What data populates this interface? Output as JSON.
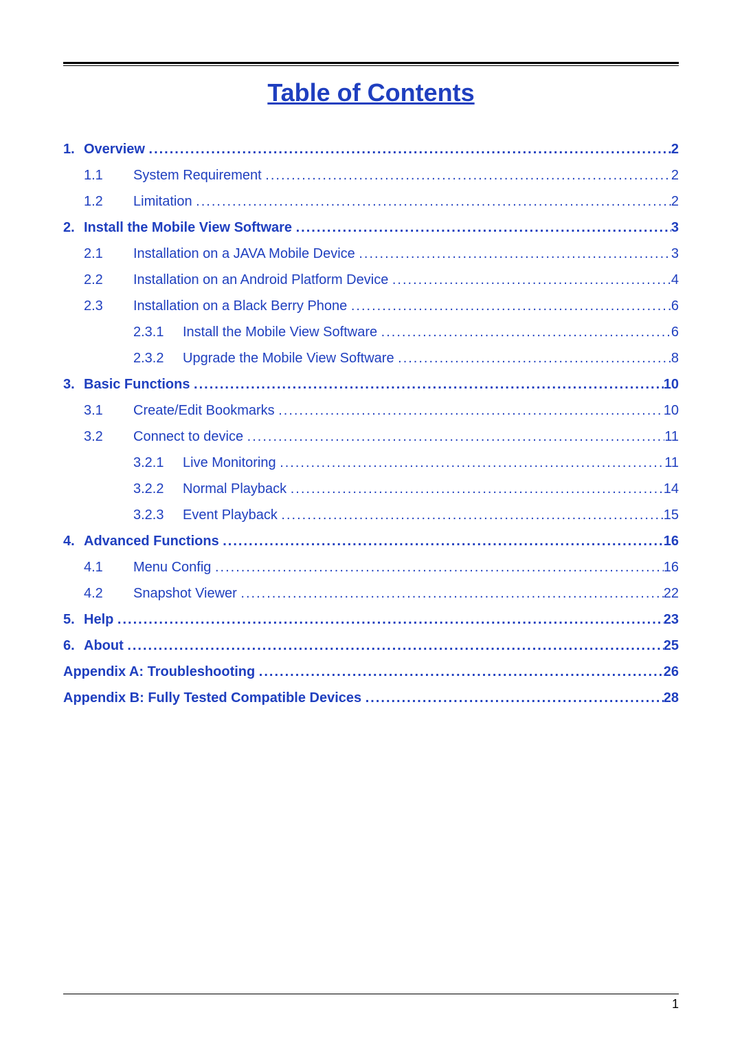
{
  "colors": {
    "title": "#1f3fbf",
    "toc_text": "#1f3fbf",
    "rule": "#000000",
    "background": "#ffffff"
  },
  "typography": {
    "title_fontsize": 36,
    "toc_fontsize": 20,
    "font_family": "Arial"
  },
  "title": "Table of Contents",
  "page_number": "1",
  "entries": [
    {
      "level": 0,
      "num": "1.",
      "label": "Overview",
      "page": "2",
      "bold": true
    },
    {
      "level": 1,
      "num": "1.1",
      "label": "System Requirement",
      "page": "2",
      "bold": false
    },
    {
      "level": 1,
      "num": "1.2",
      "label": "Limitation",
      "page": "2",
      "bold": false
    },
    {
      "level": 0,
      "num": "2.",
      "label": "Install the Mobile View Software",
      "page": "3",
      "bold": true
    },
    {
      "level": 1,
      "num": "2.1",
      "label": "Installation on a JAVA Mobile Device",
      "page": "3",
      "bold": false
    },
    {
      "level": 1,
      "num": "2.2",
      "label": "Installation on an Android Platform Device",
      "page": "4",
      "bold": false
    },
    {
      "level": 1,
      "num": "2.3",
      "label": "Installation on a Black Berry Phone",
      "page": "6",
      "bold": false
    },
    {
      "level": 2,
      "num": "2.3.1",
      "label": "Install the Mobile View Software",
      "page": "6",
      "bold": false
    },
    {
      "level": 2,
      "num": "2.3.2",
      "label": "Upgrade the Mobile View Software",
      "page": "8",
      "bold": false
    },
    {
      "level": 0,
      "num": "3.",
      "label": "Basic Functions",
      "page": "10",
      "bold": true
    },
    {
      "level": 1,
      "num": "3.1",
      "label": "Create/Edit Bookmarks",
      "page": "10",
      "bold": false
    },
    {
      "level": 1,
      "num": "3.2",
      "label": "Connect to device",
      "page": "11",
      "bold": false
    },
    {
      "level": 2,
      "num": "3.2.1",
      "label": "Live Monitoring",
      "page": "11",
      "bold": false
    },
    {
      "level": 2,
      "num": "3.2.2",
      "label": "Normal Playback",
      "page": "14",
      "bold": false
    },
    {
      "level": 2,
      "num": "3.2.3",
      "label": "Event Playback",
      "page": "15",
      "bold": false
    },
    {
      "level": 0,
      "num": "4.",
      "label": "Advanced Functions",
      "page": "16",
      "bold": true
    },
    {
      "level": 1,
      "num": "4.1",
      "label": "Menu Config",
      "page": "16",
      "bold": false
    },
    {
      "level": 1,
      "num": "4.2",
      "label": "Snapshot Viewer",
      "page": "22",
      "bold": false
    },
    {
      "level": 0,
      "num": "5.",
      "label": "Help",
      "page": "23",
      "bold": true
    },
    {
      "level": 0,
      "num": "6.",
      "label": "About",
      "page": "25",
      "bold": true
    },
    {
      "level": 0,
      "num": "",
      "label": "Appendix A: Troubleshooting",
      "page": "26",
      "bold": true
    },
    {
      "level": 0,
      "num": "",
      "label": "Appendix B: Fully Tested Compatible Devices",
      "page": "28",
      "bold": true
    }
  ]
}
